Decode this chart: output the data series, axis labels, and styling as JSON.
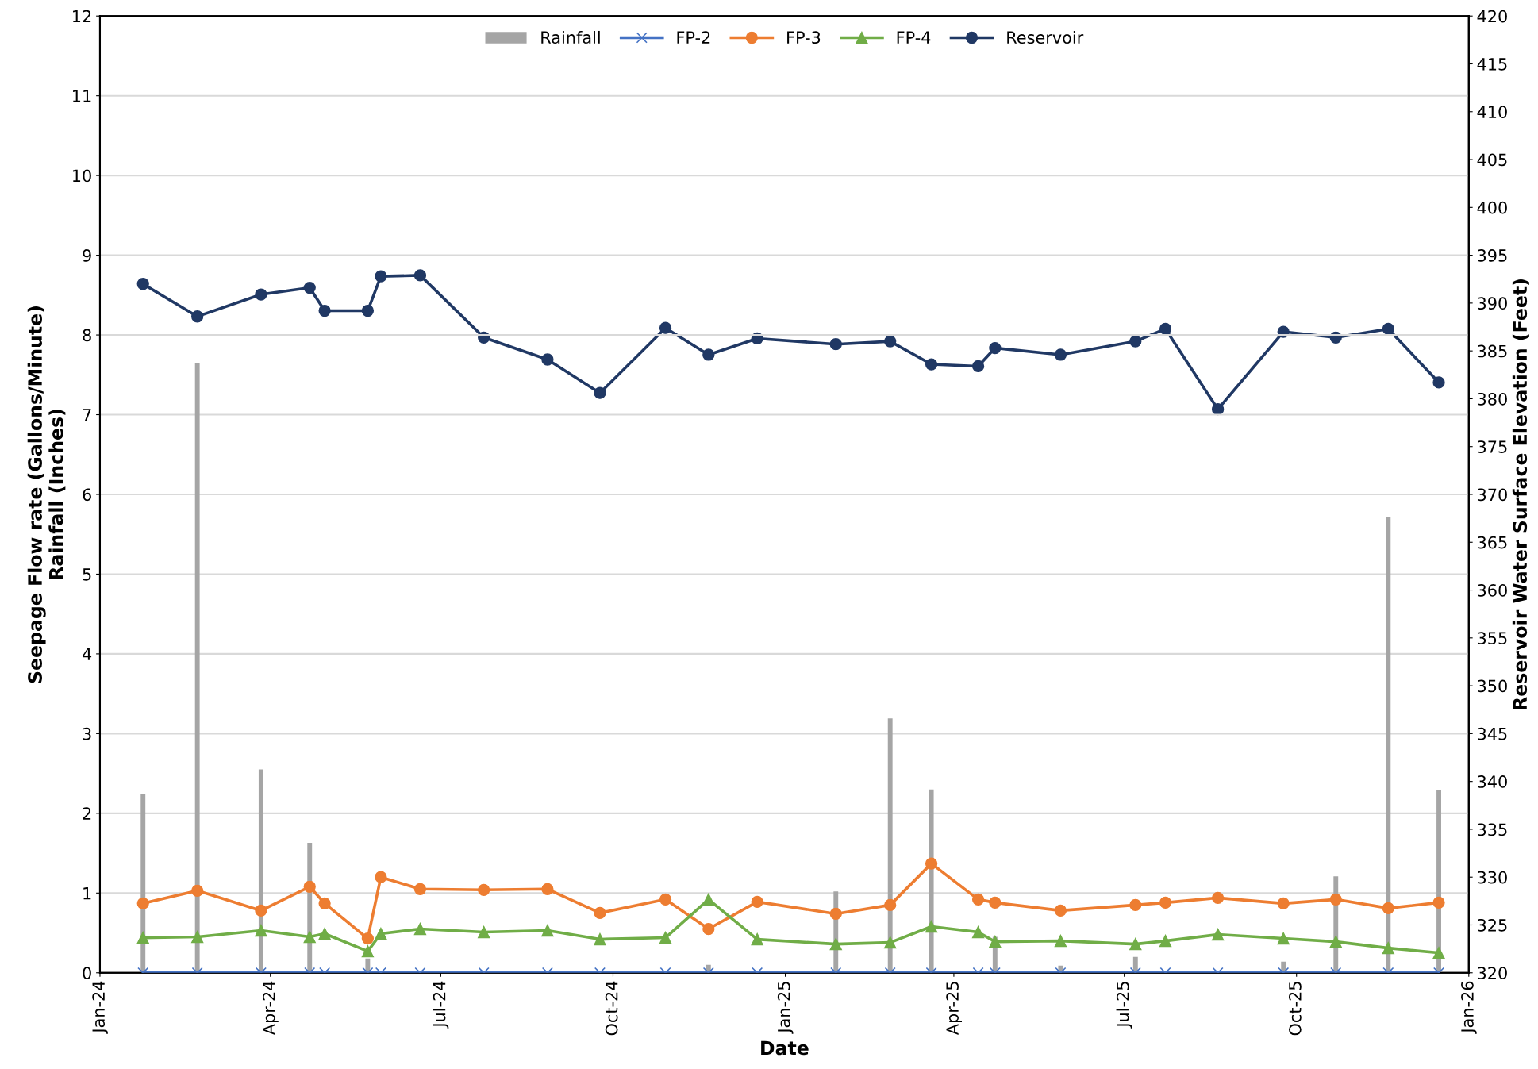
{
  "chart_data": {
    "type": "line",
    "xlabel": "Date",
    "ylabel": "Seepage Flow rate (Gallons/Minute)\nRainfall (Inches)",
    "y2label": "Reservoir Water Surface Elevation (Feet)",
    "x": [
      "2024-01-24",
      "2024-02-22",
      "2024-03-27",
      "2024-04-22",
      "2024-04-30",
      "2024-05-23",
      "2024-05-30",
      "2024-06-20",
      "2024-07-24",
      "2024-08-27",
      "2024-09-24",
      "2024-10-29",
      "2024-11-21",
      "2024-12-17",
      "2025-01-28",
      "2025-02-26",
      "2025-03-20",
      "2025-04-14",
      "2025-04-23",
      "2025-05-28",
      "2025-07-07",
      "2025-07-23",
      "2025-08-20",
      "2025-09-24",
      "2025-10-22",
      "2025-11-19",
      "2025-12-16"
    ],
    "series": [
      {
        "name": "Rainfall",
        "type": "bar",
        "color": "#a5a5a5",
        "values": [
          2.24,
          7.65,
          2.55,
          1.63,
          0,
          0.18,
          0,
          0,
          0,
          0,
          null,
          0,
          0.1,
          0,
          1.02,
          3.19,
          2.3,
          0,
          0.45,
          0.09,
          0.2,
          0,
          0,
          0.14,
          1.21,
          5.71,
          2.29
        ]
      },
      {
        "name": "FP-2",
        "color": "#4472c4",
        "marker": "cross",
        "values": [
          0,
          0,
          0,
          0,
          0,
          0,
          0,
          0,
          0,
          0,
          0,
          0,
          0,
          0,
          0,
          0,
          0,
          0,
          0,
          0,
          0,
          0,
          0,
          0,
          0,
          0,
          0
        ]
      },
      {
        "name": "FP-3",
        "color": "#ed7d31",
        "marker": "circle",
        "values": [
          0.87,
          1.03,
          0.78,
          1.08,
          0.87,
          0.43,
          1.2,
          1.05,
          1.04,
          1.05,
          0.75,
          0.92,
          0.55,
          0.89,
          0.74,
          0.85,
          1.37,
          0.92,
          0.88,
          0.78,
          0.85,
          0.88,
          0.94,
          0.87,
          0.92,
          0.81,
          0.88
        ]
      },
      {
        "name": "FP-4",
        "color": "#70ad47",
        "marker": "triangle",
        "values": [
          0.44,
          0.45,
          0.53,
          0.45,
          0.49,
          0.27,
          0.49,
          0.55,
          0.51,
          0.53,
          0.42,
          0.44,
          0.92,
          0.42,
          0.36,
          0.38,
          0.58,
          0.51,
          0.39,
          0.4,
          0.36,
          0.4,
          0.48,
          0.43,
          0.39,
          0.31,
          0.25
        ]
      },
      {
        "name": "Reservoir",
        "color": "#203864",
        "marker": "circle",
        "axis": "y2",
        "values": [
          392,
          388.6,
          390.9,
          391.6,
          389.2,
          389.2,
          392.8,
          392.9,
          386.4,
          384.1,
          380.6,
          387.4,
          384.6,
          386.3,
          385.7,
          386,
          383.6,
          383.4,
          385.3,
          384.6,
          386,
          387.3,
          378.9,
          387,
          386.4,
          387.3,
          381.7
        ]
      }
    ],
    "xlim": [
      "2024-01-01",
      "2026-01-01"
    ],
    "xticks": [
      {
        "value": "2024-01-01",
        "label": "Jan-24"
      },
      {
        "value": "2024-04-01",
        "label": "Apr-24"
      },
      {
        "value": "2024-07-01",
        "label": "Jul-24"
      },
      {
        "value": "2024-10-01",
        "label": "Oct-24"
      },
      {
        "value": "2025-01-01",
        "label": "Jan-25"
      },
      {
        "value": "2025-04-01",
        "label": "Apr-25"
      },
      {
        "value": "2025-07-01",
        "label": "Jul-25"
      },
      {
        "value": "2025-10-01",
        "label": "Oct-25"
      },
      {
        "value": "2026-01-01",
        "label": "Jan-26"
      }
    ],
    "ylim": [
      0,
      12
    ],
    "yticks": [
      0,
      1,
      2,
      3,
      4,
      5,
      6,
      7,
      8,
      9,
      10,
      11,
      12
    ],
    "y2lim": [
      320,
      420
    ],
    "y2ticks": [
      320,
      325,
      330,
      335,
      340,
      345,
      350,
      355,
      360,
      365,
      370,
      375,
      380,
      385,
      390,
      395,
      400,
      405,
      410,
      415,
      420
    ],
    "grid": "y",
    "legend": "top",
    "line_style": "solid"
  }
}
